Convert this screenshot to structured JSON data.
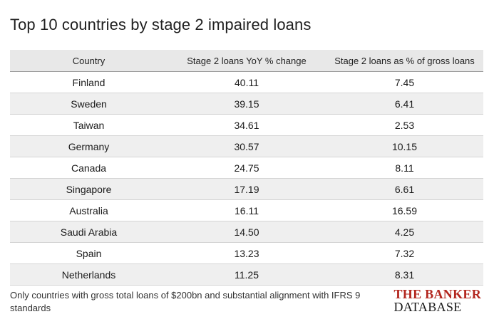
{
  "title": "Top 10 countries by stage 2 impaired loans",
  "table": {
    "headers": [
      "Country",
      "Stage 2 loans YoY % change",
      "Stage 2 loans as % of gross loans"
    ],
    "rows": [
      [
        "Finland",
        "40.11",
        "7.45"
      ],
      [
        "Sweden",
        "39.15",
        "6.41"
      ],
      [
        "Taiwan",
        "34.61",
        "2.53"
      ],
      [
        "Germany",
        "30.57",
        "10.15"
      ],
      [
        "Canada",
        "24.75",
        "8.11"
      ],
      [
        "Singapore",
        "17.19",
        "6.61"
      ],
      [
        "Australia",
        "16.11",
        "16.59"
      ],
      [
        "Saudi Arabia",
        "14.50",
        "4.25"
      ],
      [
        "Spain",
        "13.23",
        "7.32"
      ],
      [
        "Netherlands",
        "11.25",
        "8.31"
      ]
    ]
  },
  "footnote": "Only countries with gross total loans of $200bn and substantial alignment with IFRS 9 standards",
  "logo": {
    "line1": "THE BANKER",
    "line2": "DATABASE"
  },
  "colors": {
    "header_bg": "#e8e8e8",
    "stripe_bg": "#efefef",
    "logo_red": "#b3261e"
  }
}
